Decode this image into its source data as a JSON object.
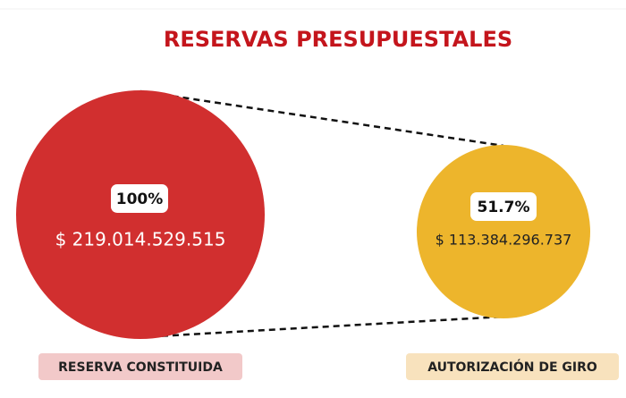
{
  "title": "RESERVAS PRESUPUESTALES",
  "items": [
    {
      "percent": "100%",
      "amount": "$ 219.014.529.515",
      "label": "RESERVA CONSTITUIDA"
    },
    {
      "percent": "51.7%",
      "amount": "$ 113.384.296.737",
      "label": "AUTORIZACIÓN DE GIRO"
    }
  ]
}
